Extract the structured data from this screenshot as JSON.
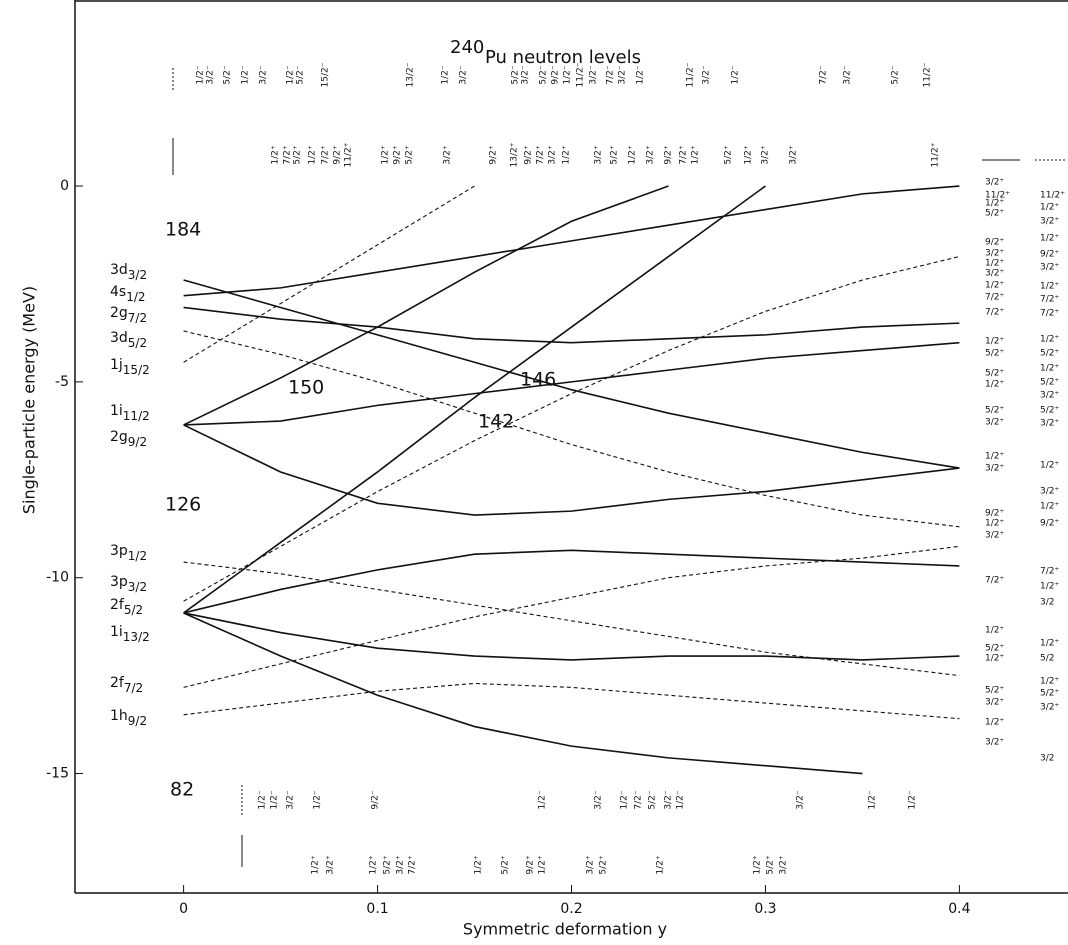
{
  "chart_data": {
    "type": "line",
    "title_superscript": "240",
    "title": "Pu neutron levels",
    "x_label": "Symmetric deformation y",
    "y_label": "Single-particle energy  (MeV)",
    "xlim": [
      -0.056,
      0.456
    ],
    "ylim": [
      -18.05,
      4.75
    ],
    "xticks": [
      0,
      0.1,
      0.2,
      0.3,
      0.4
    ],
    "yticks": [
      0,
      -5,
      -10,
      -15
    ],
    "x": [
      0,
      0.05,
      0.1,
      0.15,
      0.2,
      0.25,
      0.3,
      0.35,
      0.4
    ],
    "series": [
      {
        "style": "solid",
        "color": "#111",
        "values": [
          -6.1,
          -7.3,
          -8.1,
          -8.4,
          -8.3,
          -8.0,
          -7.8,
          -7.5,
          -7.2
        ]
      },
      {
        "style": "solid",
        "color": "#111",
        "values": [
          -6.1,
          -4.9,
          -3.6,
          -2.2,
          -0.9,
          0,
          null,
          null,
          null
        ]
      },
      {
        "style": "solid",
        "color": "#111",
        "values": [
          -6.1,
          -6.0,
          -5.6,
          -5.3,
          -5.0,
          -4.7,
          -4.4,
          -4.2,
          -4.0
        ]
      },
      {
        "style": "solid",
        "color": "#111",
        "values": [
          -10.9,
          -9.1,
          -7.3,
          -5.4,
          -3.6,
          -1.8,
          0,
          null,
          null
        ]
      },
      {
        "style": "solid",
        "color": "#111",
        "values": [
          -10.9,
          -10.3,
          -9.8,
          -9.4,
          -9.3,
          -9.4,
          -9.5,
          -9.6,
          -9.7
        ]
      },
      {
        "style": "solid",
        "color": "#111",
        "values": [
          -10.9,
          -11.4,
          -11.8,
          -12.0,
          -12.1,
          -12.0,
          -12.0,
          -12.1,
          -12.0
        ]
      },
      {
        "style": "solid",
        "color": "#111",
        "values": [
          -10.9,
          -12.0,
          -13.0,
          -13.8,
          -14.3,
          -14.6,
          -14.8,
          -15.0,
          null
        ]
      },
      {
        "style": "dashed",
        "color": "#111",
        "values": [
          -12.8,
          -12.2,
          -11.6,
          -11.0,
          -10.5,
          -10.0,
          -9.7,
          -9.5,
          -9.2
        ]
      },
      {
        "style": "dashed",
        "color": "#111",
        "values": [
          -13.5,
          -13.2,
          -12.9,
          -12.7,
          -12.8,
          -13.0,
          -13.2,
          -13.4,
          -13.6
        ]
      },
      {
        "style": "dashed",
        "color": "#111",
        "values": [
          -10.6,
          -9.2,
          -7.8,
          -6.5,
          -5.3,
          -4.2,
          -3.2,
          -2.4,
          -1.8
        ]
      },
      {
        "style": "dashed",
        "color": "#111",
        "values": [
          -4.5,
          -3.0,
          -1.5,
          0,
          null,
          null,
          null,
          null,
          null
        ]
      },
      {
        "style": "dashed",
        "color": "#111",
        "values": [
          -3.7,
          -4.3,
          -5.0,
          -5.8,
          -6.6,
          -7.3,
          -7.9,
          -8.4,
          -8.7
        ]
      },
      {
        "style": "solid",
        "color": "#111",
        "values": [
          -3.1,
          -3.4,
          -3.6,
          -3.9,
          -4.0,
          -3.9,
          -3.8,
          -3.6,
          -3.5
        ]
      },
      {
        "style": "solid",
        "color": "#111",
        "values": [
          -2.8,
          -2.6,
          -2.2,
          -1.8,
          -1.4,
          -1.0,
          -0.6,
          -0.2,
          0
        ]
      },
      {
        "style": "dashed",
        "color": "#111",
        "values": [
          -9.6,
          -9.9,
          -10.3,
          -10.7,
          -11.1,
          -11.5,
          -11.9,
          -12.2,
          -12.5
        ]
      },
      {
        "style": "solid",
        "color": "#111",
        "values": [
          -2.4,
          -3.1,
          -3.8,
          -4.5,
          -5.2,
          -5.8,
          -6.3,
          -6.8,
          -7.2
        ]
      }
    ],
    "magic_numbers": [
      "184",
      "150",
      "146",
      "142",
      "126",
      "82"
    ],
    "spherical_levels": [
      {
        "label": "3d",
        "sub": "3/2"
      },
      {
        "label": "4s",
        "sub": "1/2"
      },
      {
        "label": "2g",
        "sub": "7/2"
      },
      {
        "label": "3d",
        "sub": "5/2"
      },
      {
        "label": "1j",
        "sub": "15/2"
      },
      {
        "label": "1i",
        "sub": "11/2"
      },
      {
        "label": "2g",
        "sub": "9/2"
      },
      {
        "label": "3p",
        "sub": "1/2"
      },
      {
        "label": "3p",
        "sub": "3/2"
      },
      {
        "label": "2f",
        "sub": "5/2"
      },
      {
        "label": "1i",
        "sub": "13/2"
      },
      {
        "label": "2f",
        "sub": "7/2"
      },
      {
        "label": "1h",
        "sub": "9/2"
      }
    ],
    "top_negative": [
      "1/2⁻",
      "3/2⁻",
      "5/2⁻",
      "1/2⁻",
      "3/2⁻",
      "1/2⁻",
      "5/2⁻",
      "15/2⁻",
      "13/2⁻",
      "1/2⁻",
      "3/2⁻",
      "5/2⁻",
      "3/2⁻",
      "5/2⁻",
      "9/2⁻",
      "1/2⁻",
      "11/2⁻",
      "3/2⁻",
      "7/2⁻",
      "3/2⁻",
      "1/2⁻",
      "11/2⁻",
      "3/2⁻",
      "1/2⁻",
      "7/2⁻",
      "3/2⁻",
      "5/2⁻",
      "11/2⁻"
    ],
    "top_positive": [
      "1/2⁺",
      "7/2⁺",
      "5/2⁺",
      "1/2⁺",
      "7/2⁺",
      "9/2⁺",
      "11/2⁺",
      "1/2⁺",
      "9/2⁺",
      "5/2⁺",
      "3/2⁺",
      "9/2⁺",
      "13/2⁺",
      "9/2⁺",
      "7/2⁺",
      "3/2⁺",
      "1/2⁺",
      "3/2⁺",
      "5/2⁺",
      "1/2⁺",
      "3/2⁺",
      "9/2⁺",
      "7/2⁺",
      "1/2⁺",
      "5/2⁺",
      "1/2⁺",
      "3/2⁺",
      "3/2⁺",
      "11/2⁺"
    ],
    "bottom_negative": [
      "1/2⁻",
      "1/2⁻",
      "3/2⁻",
      "1/2⁻",
      "9/2⁻",
      "1/2⁻",
      "3/2⁻",
      "1/2⁻",
      "7/2⁻",
      "5/2⁻",
      "3/2⁻",
      "1/2⁻",
      "3/2⁻",
      "1/2⁻",
      "1/2⁻"
    ],
    "bottom_positive": [
      "1/2⁺",
      "3/2⁺",
      "1/2⁺",
      "5/2⁺",
      "3/2⁺",
      "7/2⁺",
      "1/2⁺",
      "5/2⁺",
      "9/2⁺",
      "1/2⁺",
      "3/2⁺",
      "5/2⁺",
      "1/2⁺",
      "1/2⁺",
      "5/2⁺",
      "3/2⁺"
    ],
    "right_inner": [
      "3/2⁺",
      "11/2⁺",
      "1/2⁺",
      "5/2⁺",
      "9/2⁺",
      "3/2⁺",
      "1/2⁺",
      "3/2⁺",
      "1/2⁺",
      "7/2⁺",
      "7/2⁺",
      "1/2⁺",
      "5/2⁺",
      "5/2⁺",
      "1/2⁺",
      "5/2⁺",
      "3/2⁺",
      "1/2⁺",
      "3/2⁺",
      "9/2⁺",
      "1/2⁺",
      "3/2⁺",
      "7/2⁺",
      "1/2⁺",
      "5/2⁺",
      "1/2⁺",
      "5/2⁺",
      "3/2⁺",
      "1/2⁺",
      "3/2⁺"
    ],
    "right_outer": [
      "11/2⁺",
      "1/2⁺",
      "3/2⁺",
      "1/2⁺",
      "9/2⁺",
      "3/2⁺",
      "1/2⁺",
      "7/2⁺",
      "7/2⁺",
      "1/2⁺",
      "5/2⁺",
      "1/2⁺",
      "5/2⁺",
      "3/2⁺",
      "5/2⁺",
      "3/2⁺",
      "1/2⁺",
      "3/2⁺",
      "1/2⁺",
      "9/2⁺",
      "7/2⁺",
      "1/2⁺",
      "3/2",
      "1/2⁺",
      "5/2",
      "1/2⁺",
      "5/2⁺",
      "3/2⁺",
      "3/2"
    ]
  }
}
